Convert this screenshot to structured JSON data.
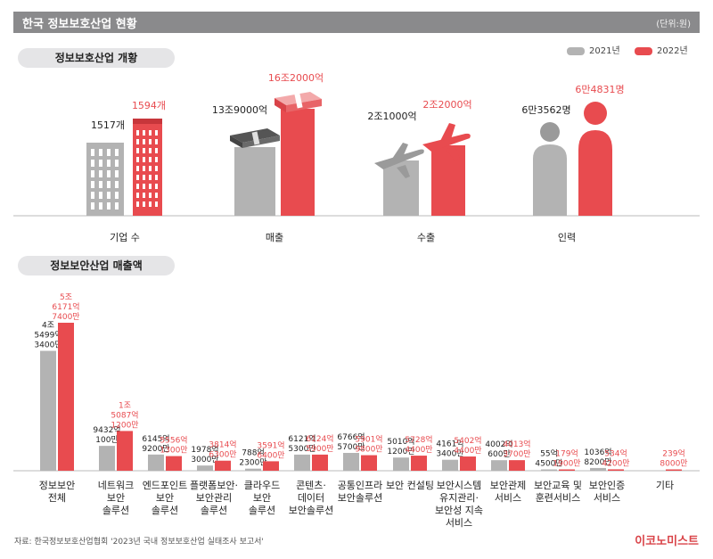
{
  "header": {
    "title": "한국 정보보호산업 현황",
    "unit": "(단위:원)"
  },
  "legend": [
    {
      "label": "2021년",
      "color": "#b3b3b3"
    },
    {
      "label": "2022년",
      "color": "#e84b4f"
    }
  ],
  "colors": {
    "y2021": "#b3b3b3",
    "y2021_dark": "#9a9a9a",
    "y2022": "#e84b4f"
  },
  "section1": {
    "title": "정보보호산업 개황"
  },
  "section2": {
    "title": "정보보안산업 매출액"
  },
  "chart_data": [
    {
      "type": "bar",
      "title": "정보보호산업 개황",
      "categories": [
        "기업 수",
        "매출",
        "수출",
        "인력"
      ],
      "series": [
        {
          "name": "2021년",
          "labels": [
            "1517개",
            "13조9000억",
            "2조1000억",
            "6만3562명"
          ]
        },
        {
          "name": "2022년",
          "labels": [
            "1594개",
            "16조2000억",
            "2조2000억",
            "6만4831명"
          ]
        }
      ],
      "icons": [
        "building-icon",
        "money-stack-icon",
        "airplane-icon",
        "person-icon"
      ]
    },
    {
      "type": "bar",
      "title": "정보보안산업 매출액",
      "unit": "원",
      "categories": [
        [
          "정보보안",
          "전체"
        ],
        [
          "네트워크",
          "보안",
          "솔루션"
        ],
        [
          "엔드포인트",
          "보안",
          "솔루션"
        ],
        [
          "플랫폼보안·",
          "보안관리",
          "솔루션"
        ],
        [
          "클라우드",
          "보안",
          "솔루션"
        ],
        [
          "콘텐츠·",
          "데이터",
          "보안솔루션"
        ],
        [
          "공통인프라",
          "보안솔루션"
        ],
        [
          "보안 컨설팅"
        ],
        [
          "보안시스템",
          "유지관리·",
          "보안성 지속",
          "서비스"
        ],
        [
          "보안관제",
          "서비스"
        ],
        [
          "보안교육 및",
          "훈련서비스"
        ],
        [
          "보안인증",
          "서비스"
        ],
        [
          "기타"
        ]
      ],
      "series": [
        {
          "name": "2021년",
          "values": [
            45499.34,
            9432.01,
            6145.92,
            1978.3,
            788.23,
            6121.53,
            6766.57,
            5010.12,
            4161.34,
            4002.06,
            55.45,
            1036.82,
            null
          ],
          "labels": [
            [
              "4조",
              "5499억",
              "3400만"
            ],
            [
              "9432억",
              "100만"
            ],
            [
              "6145억",
              "9200만"
            ],
            [
              "1978억",
              "3000만"
            ],
            [
              "788억",
              "2300만"
            ],
            [
              "6121억",
              "5300만"
            ],
            [
              "6766억",
              "5700만"
            ],
            [
              "5010억",
              "1200만"
            ],
            [
              "4161억",
              "3400만"
            ],
            [
              "4002억",
              "600만"
            ],
            [
              "55억",
              "4500만"
            ],
            [
              "1036억",
              "8200만"
            ],
            []
          ]
        },
        {
          "name": "2022년",
          "values": [
            56171.74,
            15087.12,
            5556.13,
            3814.63,
            3591.64,
            6124.59,
            5901.98,
            5728.44,
            5402.44,
            4013.37,
            179.19,
            534.42,
            239.8
          ],
          "labels": [
            [
              "5조",
              "6171억",
              "7400만"
            ],
            [
              "1조",
              "5087억",
              "1200만"
            ],
            [
              "5556억",
              "1300만"
            ],
            [
              "3814억",
              "6300만"
            ],
            [
              "3591억",
              "6400만"
            ],
            [
              "6124억",
              "5900만"
            ],
            [
              "5901억",
              "9800만"
            ],
            [
              "5728억",
              "4400만"
            ],
            [
              "5402억",
              "4400만"
            ],
            [
              "4013억",
              "3700만"
            ],
            [
              "179억",
              "1900만"
            ],
            [
              "534억",
              "4200만"
            ],
            [
              "239억",
              "8000만"
            ]
          ]
        }
      ]
    }
  ],
  "footer": {
    "source": "자료: 한국정보보호산업협회 '2023년 국내 정보보호산업 실태조사 보고서'",
    "brand": "이코노미스트"
  }
}
